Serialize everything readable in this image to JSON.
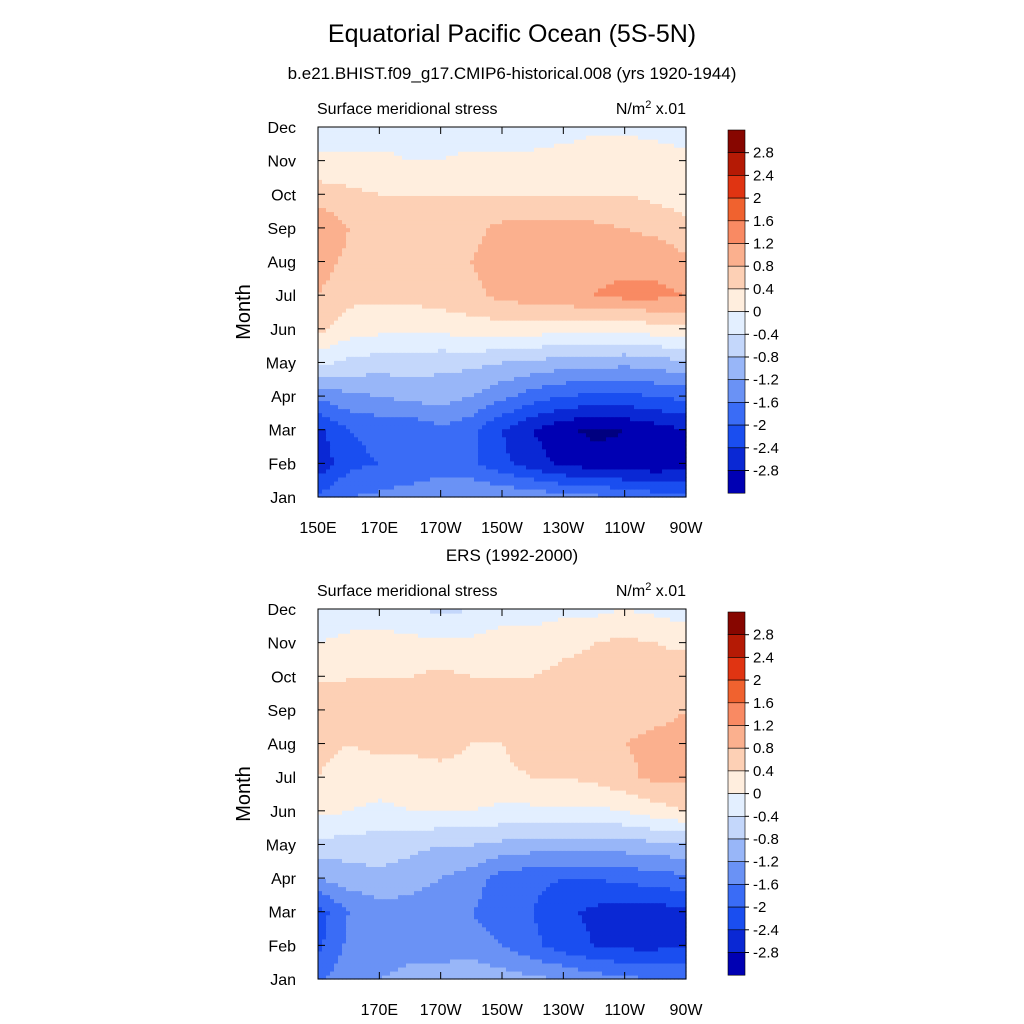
{
  "title": "Equatorial Pacific Ocean (5S-5N)",
  "subtitle": "b.e21.BHIST.f09_g17.CMIP6-historical.008 (yrs 1920-1944)",
  "panel2_title": "ERS (1992-2000)",
  "colors": {
    "scale": [
      "#000080",
      "#0000b3",
      "#0a28d4",
      "#1a4ef0",
      "#3a6cf6",
      "#6a92f5",
      "#98b6f8",
      "#c4d7fb",
      "#e3efff",
      "#ffeede",
      "#fdd0b5",
      "#fbb08e",
      "#f98a63",
      "#f0622f",
      "#e03412",
      "#b51a05",
      "#870600"
    ]
  },
  "chart_data": [
    {
      "type": "heatmap",
      "label_left": "Surface meridional stress",
      "units_text": "N/m",
      "units_sup": "2",
      "units_suffix": " x.01",
      "ylabel": "Month",
      "x_ticks": [
        "150E",
        "170E",
        "170W",
        "150W",
        "130W",
        "110W",
        "90W"
      ],
      "y_ticks": [
        "Jan",
        "Feb",
        "Mar",
        "Apr",
        "May",
        "Jun",
        "Jul",
        "Aug",
        "Sep",
        "Oct",
        "Nov",
        "Dec"
      ],
      "colorbar_labels": [
        "2.8",
        "2.4",
        "2",
        "1.6",
        "1.2",
        "0.8",
        "0.4",
        "0",
        "-0.4",
        "-0.8",
        "-1.2",
        "-1.6",
        "-2",
        "-2.4",
        "-2.8"
      ],
      "x": [
        150,
        160,
        170,
        180,
        190,
        200,
        210,
        220,
        230,
        240,
        250,
        260,
        270
      ],
      "y_months": [
        1,
        2,
        3,
        4,
        5,
        6,
        7,
        8,
        9,
        10,
        11,
        12
      ],
      "z": [
        [
          -1.5,
          -1.2,
          -1.1,
          -1.0,
          -0.9,
          -0.8,
          -0.8,
          -0.9,
          -1.0,
          -1.1,
          -1.2,
          -1.4,
          -1.5
        ],
        [
          -2.3,
          -1.7,
          -1.6,
          -1.5,
          -1.4,
          -1.5,
          -1.9,
          -2.2,
          -2.5,
          -2.6,
          -2.7,
          -2.7,
          -2.6
        ],
        [
          -2.1,
          -1.6,
          -1.5,
          -1.5,
          -1.3,
          -1.5,
          -2.0,
          -2.4,
          -2.7,
          -2.9,
          -2.8,
          -2.6,
          -2.4
        ],
        [
          -1.1,
          -0.9,
          -0.8,
          -0.7,
          -0.6,
          -0.8,
          -1.1,
          -1.4,
          -1.6,
          -1.7,
          -1.7,
          -1.6,
          -1.5
        ],
        [
          0.1,
          -0.1,
          -0.2,
          -0.2,
          -0.3,
          -0.3,
          -0.4,
          -0.5,
          -0.6,
          -0.6,
          -0.7,
          -0.6,
          -0.5
        ],
        [
          0.9,
          0.6,
          0.5,
          0.5,
          0.5,
          0.6,
          0.6,
          0.6,
          0.5,
          0.5,
          0.5,
          0.6,
          0.7
        ],
        [
          1.2,
          0.9,
          0.9,
          0.9,
          1.0,
          1.1,
          1.3,
          1.4,
          1.5,
          1.6,
          1.7,
          1.7,
          1.6
        ],
        [
          1.4,
          1.1,
          1.0,
          1.0,
          1.1,
          1.2,
          1.4,
          1.5,
          1.5,
          1.5,
          1.5,
          1.5,
          1.3
        ],
        [
          1.6,
          1.2,
          1.0,
          1.0,
          1.0,
          1.1,
          1.3,
          1.3,
          1.3,
          1.3,
          1.2,
          1.1,
          0.9
        ],
        [
          1.0,
          0.9,
          0.8,
          0.8,
          0.8,
          0.8,
          0.8,
          0.8,
          0.8,
          0.8,
          0.8,
          0.7,
          0.6
        ],
        [
          0.5,
          0.5,
          0.5,
          0.4,
          0.4,
          0.5,
          0.5,
          0.5,
          0.6,
          0.7,
          0.8,
          0.7,
          0.5
        ],
        [
          0.1,
          0.1,
          0.2,
          0.2,
          0.2,
          0.2,
          0.2,
          0.2,
          0.2,
          0.3,
          0.3,
          0.2,
          0.2
        ]
      ]
    },
    {
      "type": "heatmap",
      "label_left": "Surface meridional stress",
      "units_text": "N/m",
      "units_sup": "2",
      "units_suffix": " x.01",
      "ylabel": "Month",
      "x_ticks": [
        "170E",
        "170W",
        "150W",
        "130W",
        "110W",
        "90W"
      ],
      "y_ticks": [
        "Jan",
        "Feb",
        "Mar",
        "Apr",
        "May",
        "Jun",
        "Jul",
        "Aug",
        "Sep",
        "Oct",
        "Nov",
        "Dec"
      ],
      "colorbar_labels": [
        "2.8",
        "2.4",
        "2",
        "1.6",
        "1.2",
        "0.8",
        "0.4",
        "0",
        "-0.4",
        "-0.8",
        "-1.2",
        "-1.6",
        "-2",
        "-2.4",
        "-2.8"
      ],
      "x": [
        150,
        160,
        170,
        180,
        190,
        200,
        210,
        220,
        230,
        240,
        250,
        260,
        270
      ],
      "y_months": [
        1,
        2,
        3,
        4,
        5,
        6,
        7,
        8,
        9,
        10,
        11,
        12
      ],
      "z": [
        [
          -1.3,
          -0.9,
          -0.8,
          -0.7,
          -0.6,
          -0.5,
          -0.6,
          -0.7,
          -0.8,
          -1.0,
          -1.1,
          -1.2,
          -1.3
        ],
        [
          -1.7,
          -1.1,
          -1.0,
          -0.9,
          -1.0,
          -1.0,
          -1.2,
          -1.5,
          -1.8,
          -2.0,
          -2.1,
          -2.1,
          -2.0
        ],
        [
          -1.8,
          -1.2,
          -1.0,
          -1.0,
          -1.1,
          -1.2,
          -1.4,
          -1.6,
          -1.9,
          -2.1,
          -2.2,
          -2.2,
          -2.1
        ],
        [
          -0.8,
          -0.6,
          -0.5,
          -0.6,
          -0.8,
          -1.0,
          -1.4,
          -1.5,
          -1.6,
          -1.6,
          -1.5,
          -1.4,
          -1.3
        ],
        [
          -0.1,
          -0.2,
          -0.2,
          -0.3,
          -0.4,
          -0.4,
          -0.5,
          -0.6,
          -0.6,
          -0.6,
          -0.6,
          -0.5,
          -0.5
        ],
        [
          0.5,
          0.4,
          0.3,
          0.4,
          0.4,
          0.4,
          0.3,
          0.3,
          0.3,
          0.3,
          0.4,
          0.6,
          0.8
        ],
        [
          0.8,
          0.6,
          0.6,
          0.6,
          0.7,
          0.7,
          0.7,
          0.8,
          0.8,
          0.9,
          1.1,
          1.3,
          1.3
        ],
        [
          0.9,
          0.8,
          0.9,
          0.9,
          0.9,
          0.8,
          0.8,
          1.0,
          1.0,
          1.0,
          1.2,
          1.3,
          1.3
        ],
        [
          1.2,
          0.9,
          0.8,
          1.0,
          1.0,
          0.9,
          0.9,
          0.9,
          0.9,
          0.9,
          1.0,
          1.1,
          1.2
        ],
        [
          0.7,
          0.8,
          0.8,
          0.8,
          0.9,
          0.8,
          0.8,
          0.8,
          0.9,
          0.9,
          1.0,
          1.0,
          1.1
        ],
        [
          0.4,
          0.5,
          0.6,
          0.5,
          0.5,
          0.5,
          0.6,
          0.6,
          0.7,
          0.8,
          0.9,
          0.8,
          0.7
        ],
        [
          0.1,
          0.2,
          0.1,
          0.1,
          -0.1,
          0.0,
          0.2,
          0.2,
          0.3,
          0.3,
          0.4,
          0.3,
          0.2
        ]
      ]
    }
  ]
}
